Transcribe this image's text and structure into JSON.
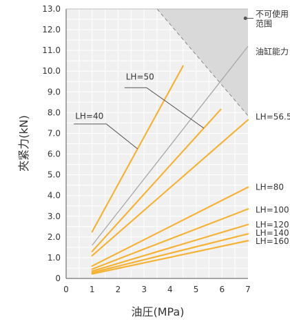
{
  "chart_data": {
    "type": "line",
    "xlabel": "油圧(MPa)",
    "ylabel": "夾紧力(kN)",
    "xlim": [
      0,
      7
    ],
    "ylim": [
      0,
      13
    ],
    "x_ticks": [
      "0",
      "1",
      "2",
      "3",
      "4",
      "5",
      "6",
      "7"
    ],
    "y_ticks": [
      "0",
      "1.0",
      "2.0",
      "3.0",
      "4.0",
      "5.0",
      "6.0",
      "7.0",
      "8.0",
      "9.0",
      "10.0",
      "11.0",
      "12.0",
      "13.0"
    ],
    "grid": true,
    "colors": {
      "lines": "#f5b335",
      "capacity": "#aaaaaa",
      "unusable": "#d9d9d9",
      "plot_bg": "#f0f0f0",
      "grid": "#ffffff"
    },
    "unusable_region": {
      "label_line1": "不可使用",
      "label_line2": "范围",
      "boundary": [
        [
          3.5,
          13
        ],
        [
          7,
          7.85
        ]
      ]
    },
    "capacity_line": {
      "label": "油缸能力",
      "points": [
        [
          1,
          1.6
        ],
        [
          7,
          11.2
        ]
      ]
    },
    "series": [
      {
        "name": "LH=40",
        "points": [
          [
            1,
            2.25
          ],
          [
            4.5,
            10.25
          ]
        ]
      },
      {
        "name": "LH=50",
        "points": [
          [
            1,
            1.3
          ],
          [
            5.95,
            8.15
          ]
        ]
      },
      {
        "name": "LH=56.5",
        "points": [
          [
            1,
            1.1
          ],
          [
            7,
            7.65
          ]
        ]
      },
      {
        "name": "LH=80",
        "points": [
          [
            1,
            0.6
          ],
          [
            7,
            4.4
          ]
        ]
      },
      {
        "name": "LH=100",
        "points": [
          [
            1,
            0.45
          ],
          [
            7,
            3.35
          ]
        ]
      },
      {
        "name": "LH=120",
        "points": [
          [
            1,
            0.35
          ],
          [
            7,
            2.6
          ]
        ]
      },
      {
        "name": "LH=140",
        "points": [
          [
            1,
            0.28
          ],
          [
            7,
            2.15
          ]
        ]
      },
      {
        "name": "LH=160",
        "points": [
          [
            1,
            0.22
          ],
          [
            7,
            1.82
          ]
        ]
      }
    ],
    "annotations": [
      {
        "label": "LH=40",
        "text_at": [
          0.35,
          7.7
        ],
        "line": [
          [
            1.55,
            7.45
          ],
          [
            2.75,
            6.25
          ]
        ]
      },
      {
        "label": "LH=50",
        "text_at": [
          2.3,
          9.6
        ],
        "line": [
          [
            3.1,
            9.2
          ],
          [
            5.3,
            7.25
          ]
        ]
      }
    ],
    "right_labels": [
      {
        "text": "LH=56.5",
        "y": 7.8
      },
      {
        "text": "LH=80",
        "y": 4.4
      },
      {
        "text": "LH=100",
        "y": 3.3
      },
      {
        "text": "LH=120",
        "y": 2.6
      },
      {
        "text": "LH=140",
        "y": 2.2
      },
      {
        "text": "LH=160",
        "y": 1.8
      }
    ]
  }
}
